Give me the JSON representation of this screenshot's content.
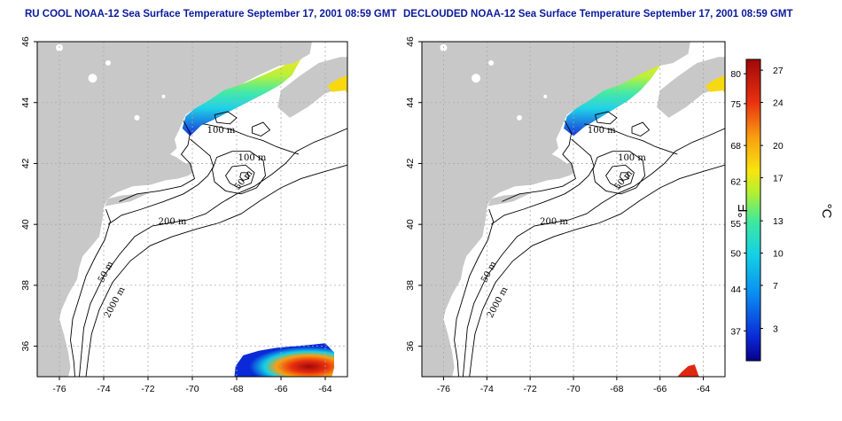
{
  "panels": [
    {
      "id": "left",
      "title": "RU COOL NOAA-12 Sea Surface Temperature September 17, 2001 08:59 GMT",
      "contour_labels": [
        {
          "text": "100 m",
          "lon": -68.7,
          "lat": 43.0
        },
        {
          "text": "100 m",
          "lon": -67.3,
          "lat": 42.1
        },
        {
          "text": "50 m",
          "lon": -67.6,
          "lat": 41.4
        },
        {
          "text": "200 m",
          "lon": -70.9,
          "lat": 40.0
        },
        {
          "text": "50 m",
          "lon": -73.8,
          "lat": 38.4
        },
        {
          "text": "2000 m",
          "lon": -73.4,
          "lat": 37.4
        }
      ]
    },
    {
      "id": "right",
      "title": "DECLOUDED NOAA-12 Sea Surface Temperature September 17, 2001 08:59 GMT",
      "contour_labels": [
        {
          "text": "100 m",
          "lon": -68.7,
          "lat": 43.0
        },
        {
          "text": "100 m",
          "lon": -67.3,
          "lat": 42.1
        },
        {
          "text": "50 m",
          "lon": -67.6,
          "lat": 41.4
        },
        {
          "text": "200 m",
          "lon": -70.9,
          "lat": 40.0
        },
        {
          "text": "50 m",
          "lon": -73.8,
          "lat": 38.4
        },
        {
          "text": "2000 m",
          "lon": -73.4,
          "lat": 37.4
        }
      ]
    }
  ],
  "axes": {
    "lon_range": [
      -77,
      -63
    ],
    "lat_range": [
      35,
      46
    ],
    "lon_ticks": [
      "-76",
      "-74",
      "-72",
      "-70",
      "-68",
      "-66",
      "-64"
    ],
    "lat_ticks": [
      "36",
      "38",
      "40",
      "42",
      "44",
      "46"
    ]
  },
  "colorbar": {
    "fahrenheit_label": "°F",
    "celsius_label": "°C",
    "fahrenheit_ticks": [
      "80",
      "75",
      "68",
      "62",
      "55",
      "50",
      "44",
      "37"
    ],
    "celsius_ticks": [
      "27",
      "24",
      "20",
      "17",
      "13",
      "10",
      "7",
      "3"
    ],
    "celsius_range": [
      0,
      28
    ],
    "colors": [
      "#08008a",
      "#0a2ad8",
      "#0a8cf0",
      "#14d0e6",
      "#3ce8a0",
      "#b4f030",
      "#f8e410",
      "#f8a010",
      "#e83010",
      "#a00808"
    ]
  },
  "colors": {
    "land": "#c8c8c8",
    "ocean": "#ffffff",
    "contour": "#000000",
    "grid": "#aaaaaa",
    "title": "#0a1a9c"
  }
}
